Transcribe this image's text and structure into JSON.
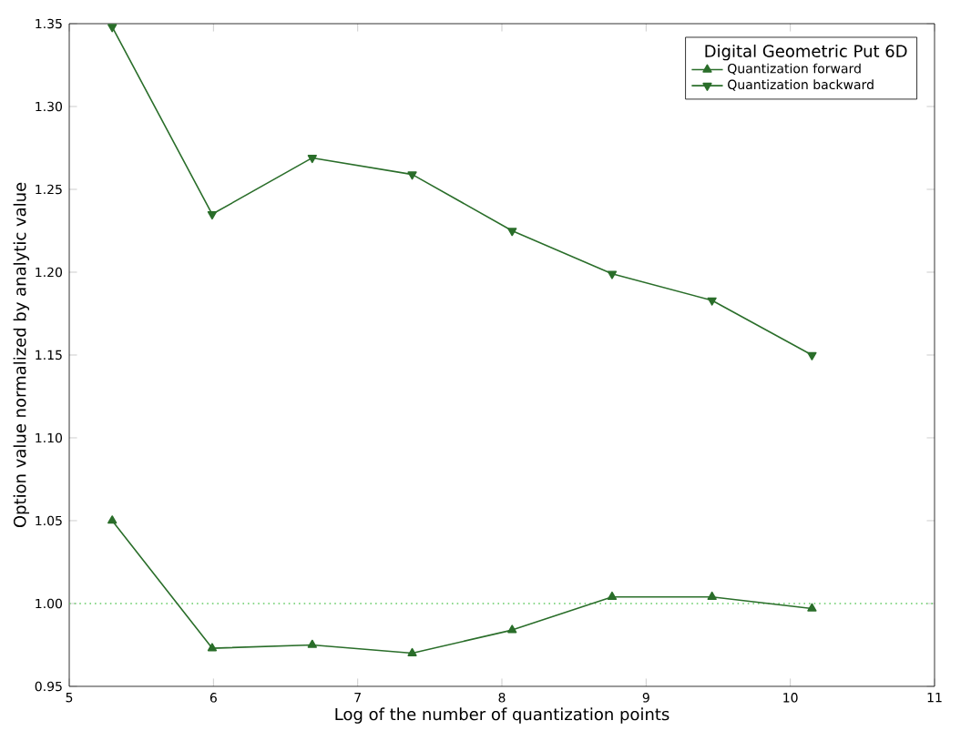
{
  "chart_data": {
    "type": "line",
    "xlabel": "Log of the number of quantization points",
    "ylabel": "Option value normalized by analytic value",
    "legend_title": "Digital Geometric Put 6D",
    "x": [
      5.298,
      5.991,
      6.685,
      7.378,
      8.071,
      8.764,
      9.457,
      10.15
    ],
    "series": [
      {
        "name": "Quantization forward",
        "color": "#2a6e2a",
        "marker": "triangle",
        "values": [
          1.05,
          0.973,
          0.975,
          0.97,
          0.984,
          1.004,
          1.004,
          0.997
        ]
      },
      {
        "name": "Quantization backward",
        "color": "#2a6e2a",
        "marker": "triangle down",
        "values": [
          1.348,
          1.235,
          1.269,
          1.259,
          1.225,
          1.199,
          1.183,
          1.15
        ]
      }
    ],
    "ref_lines": [
      {
        "axis": "y",
        "value": 1.0,
        "color": "#66cc66",
        "line_style": "dotted"
      }
    ],
    "xlim": [
      5,
      11
    ],
    "xticks": [
      5,
      6,
      7,
      8,
      9,
      10,
      11
    ],
    "ylim": [
      0.95,
      1.35
    ],
    "yticks": [
      {
        "value": 0.95,
        "label": "0.95"
      },
      {
        "value": 1.0,
        "label": "1.00"
      },
      {
        "value": 1.05,
        "label": "1.05"
      },
      {
        "value": 1.1,
        "label": "1.10"
      },
      {
        "value": 1.15,
        "label": "1.15"
      },
      {
        "value": 1.2,
        "label": "1.20"
      },
      {
        "value": 1.25,
        "label": "1.25"
      },
      {
        "value": 1.3,
        "label": "1.30"
      },
      {
        "value": 1.35,
        "label": "1.35"
      }
    ],
    "grid": false,
    "legend": "top right"
  }
}
